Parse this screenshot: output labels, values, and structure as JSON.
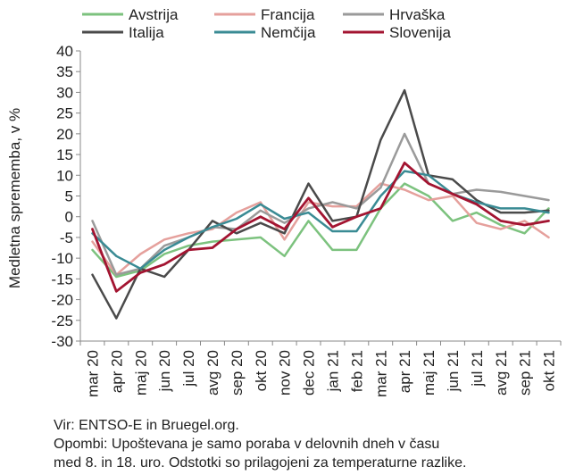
{
  "chart_data": {
    "type": "line",
    "title": "",
    "xlabel": "",
    "ylabel": "Medletna sprememba, v %",
    "ylim": [
      -30,
      40
    ],
    "yticks": [
      40,
      35,
      30,
      25,
      20,
      15,
      10,
      5,
      0,
      -5,
      -10,
      -15,
      -20,
      -25,
      -30
    ],
    "grid": false,
    "legend_position": "top",
    "categories": [
      "mar 20",
      "apr 20",
      "maj 20",
      "jun 20",
      "jul 20",
      "avg 20",
      "sep 20",
      "okt 20",
      "nov 20",
      "dec 20",
      "jan 21",
      "feb 21",
      "mar 21",
      "apr 21",
      "maj 21",
      "jun 21",
      "jul 21",
      "avg 21",
      "sep 21",
      "okt 21"
    ],
    "series": [
      {
        "name": "Avstrija",
        "color": "#7cc27e",
        "width": 2.5,
        "values": [
          -8,
          -14.5,
          -13,
          -9,
          -7,
          -6,
          -5.5,
          -5,
          -9.5,
          -1,
          -8,
          -8,
          2,
          8,
          5,
          -1,
          1,
          -2,
          -4,
          2
        ]
      },
      {
        "name": "Francija",
        "color": "#e5a09c",
        "width": 2.5,
        "values": [
          -6,
          -14,
          -9,
          -5.5,
          -4,
          -3,
          1,
          3.5,
          -5.5,
          3.5,
          2.5,
          2.5,
          8,
          6.5,
          4,
          5,
          -1.5,
          -3,
          -1,
          -5
        ]
      },
      {
        "name": "Hrvaška",
        "color": "#9a9a9a",
        "width": 2.5,
        "values": [
          -1,
          -14,
          -12.5,
          -7,
          -5,
          -2.5,
          -3,
          1.5,
          -1.5,
          2,
          3.5,
          2,
          7,
          20,
          8,
          5.5,
          6.5,
          6,
          5,
          4
        ]
      },
      {
        "name": "Italija",
        "color": "#4a4a4a",
        "width": 2.5,
        "values": [
          -14,
          -24.5,
          -12.5,
          -14.5,
          -8,
          -1,
          -4,
          -1.5,
          -4,
          8,
          -1,
          0,
          18.5,
          30.5,
          10,
          9,
          4,
          1,
          1,
          1.5
        ]
      },
      {
        "name": "Nemčija",
        "color": "#3a8b94",
        "width": 2.5,
        "values": [
          -4,
          -9.5,
          -12.5,
          -8,
          -5,
          -2.5,
          -0.5,
          3,
          -0.5,
          1,
          -3.5,
          -3.5,
          5,
          11,
          10,
          5.5,
          3.5,
          2,
          2,
          1
        ]
      },
      {
        "name": "Slovenija",
        "color": "#a31431",
        "width": 2.8,
        "values": [
          -3,
          -18,
          -13.5,
          -11.5,
          -8,
          -7.5,
          -3,
          0,
          -3,
          4.5,
          -2.5,
          0,
          2,
          13,
          8,
          5.5,
          3,
          -1,
          -2,
          -1
        ]
      }
    ]
  },
  "notes": {
    "source": "Vir: ENTSO-E in Bruegel.org.",
    "note_line1": "Opombi: Upoštevana je samo poraba v delovnih dneh v času",
    "note_line2": "med 8. in 18. uro. Odstotki so prilagojeni za temperaturne razlike."
  }
}
